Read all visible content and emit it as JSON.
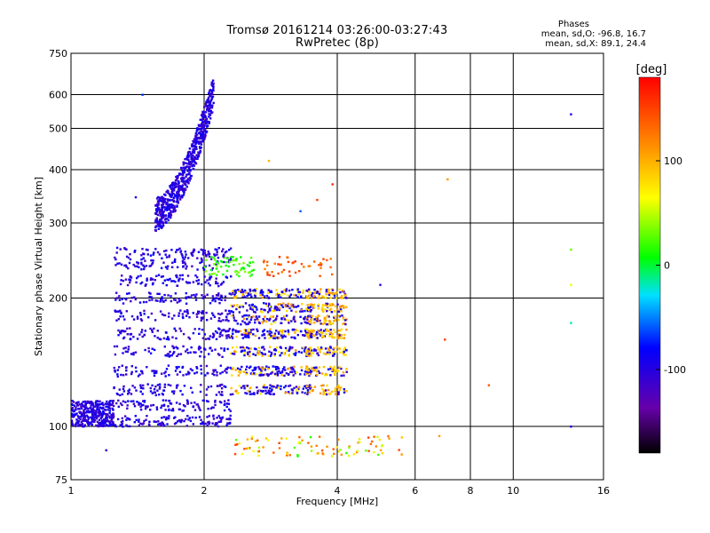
{
  "chart_data": {
    "type": "scatter",
    "title": "Tromsø 20161214 03:26:00-03:27:43",
    "subtitle": "RwPretec (8p)",
    "xlabel": "Frequency [MHz]",
    "ylabel": "Stationary phase Virtual Height [km]",
    "x_scale": "log",
    "y_scale": "log",
    "xlim": [
      1,
      16
    ],
    "ylim": [
      75,
      750
    ],
    "x_ticks": [
      1,
      2,
      4,
      6,
      8,
      10,
      16
    ],
    "x_tick_labels": [
      "1",
      "2",
      "4",
      "6",
      "8",
      "10",
      "16"
    ],
    "y_ticks": [
      75,
      100,
      200,
      300,
      400,
      500,
      600,
      750
    ],
    "y_tick_labels": [
      "75",
      "100",
      "200",
      "300",
      "400",
      "500",
      "600",
      "750"
    ],
    "grid": true,
    "phase_stats": {
      "heading": "Phases",
      "o_line": "mean, sd,O: -96.8, 16.7",
      "x_line": "mean, sd,X:  89.1, 24.4"
    },
    "colorbar": {
      "label": "[deg]",
      "range": [
        -180,
        180
      ],
      "ticks": [
        100,
        0,
        -100
      ],
      "tick_labels": [
        "100",
        "0",
        "-100"
      ],
      "colormap": "rainbow (black-purple-blue-cyan-green-yellow-orange-red)"
    },
    "clusters": [
      {
        "region": "F2 trace",
        "x_range": [
          1.55,
          2.1
        ],
        "y_range": [
          300,
          640
        ],
        "phase_deg": -100
      },
      {
        "region": "F1 / lower F trace",
        "x_range": [
          1.0,
          2.3
        ],
        "y_range": [
          100,
          260
        ],
        "phase_deg": -100
      },
      {
        "region": "mid-frequency returns",
        "x_range": [
          2.3,
          3.5
        ],
        "y_range": [
          115,
          210
        ],
        "phase_deg": -95
      },
      {
        "region": "high-frequency mixed returns",
        "x_range": [
          3.4,
          4.2
        ],
        "y_range": [
          130,
          200
        ],
        "phase_deg": 95
      },
      {
        "region": "cyan patch",
        "x_range": [
          2.0,
          2.6
        ],
        "y_range": [
          225,
          250
        ],
        "phase_deg": 20
      },
      {
        "region": "orange patch",
        "x_range": [
          2.7,
          3.9
        ],
        "y_range": [
          225,
          250
        ],
        "phase_deg": 140
      },
      {
        "region": "sporadic E layer",
        "x_range": [
          2.3,
          5.6
        ],
        "y_range": [
          85,
          95
        ],
        "phase_deg": 80
      }
    ],
    "isolated_points": [
      {
        "x": 1.45,
        "y": 600,
        "phase_deg": -70
      },
      {
        "x": 3.6,
        "y": 340,
        "phase_deg": 150
      },
      {
        "x": 3.9,
        "y": 370,
        "phase_deg": 160
      },
      {
        "x": 2.8,
        "y": 420,
        "phase_deg": 100
      },
      {
        "x": 3.3,
        "y": 320,
        "phase_deg": -60
      },
      {
        "x": 7.1,
        "y": 380,
        "phase_deg": 110
      },
      {
        "x": 13.5,
        "y": 540,
        "phase_deg": -100
      },
      {
        "x": 13.5,
        "y": 260,
        "phase_deg": 30
      },
      {
        "x": 13.5,
        "y": 215,
        "phase_deg": 60
      },
      {
        "x": 13.5,
        "y": 175,
        "phase_deg": -20
      },
      {
        "x": 13.5,
        "y": 100,
        "phase_deg": -100
      },
      {
        "x": 5.0,
        "y": 215,
        "phase_deg": -100
      },
      {
        "x": 7.0,
        "y": 160,
        "phase_deg": 150
      },
      {
        "x": 8.8,
        "y": 125,
        "phase_deg": 140
      },
      {
        "x": 6.8,
        "y": 95,
        "phase_deg": 110
      },
      {
        "x": 1.4,
        "y": 345,
        "phase_deg": -90
      },
      {
        "x": 1.2,
        "y": 88,
        "phase_deg": -100
      }
    ]
  }
}
